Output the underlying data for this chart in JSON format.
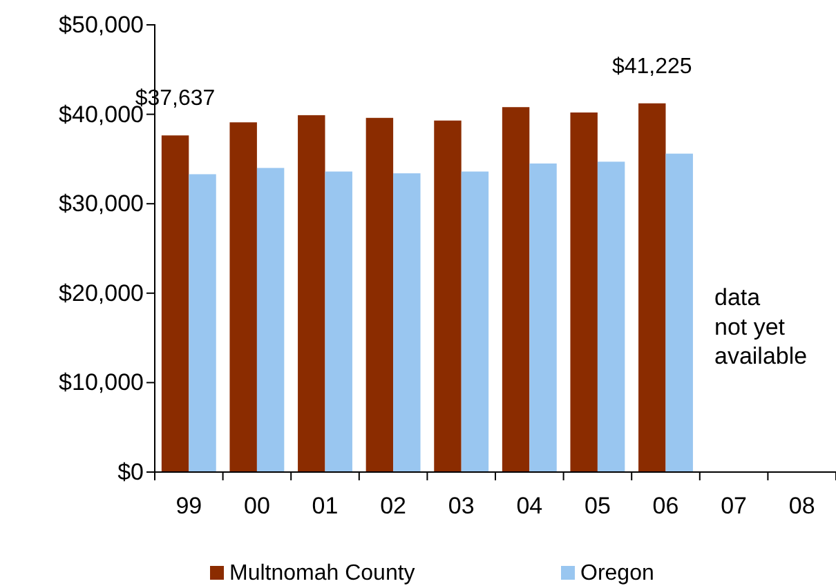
{
  "chart_data": {
    "type": "bar",
    "categories": [
      "99",
      "00",
      "01",
      "02",
      "03",
      "04",
      "05",
      "06",
      "07",
      "08"
    ],
    "series": [
      {
        "name": "Multnomah County",
        "color": "#8b2c00",
        "values": [
          37637,
          39100,
          39900,
          39600,
          39300,
          40800,
          40200,
          41225,
          null,
          null
        ],
        "value_labels": [
          "$37,637",
          null,
          null,
          null,
          null,
          null,
          null,
          "$41,225",
          null,
          null
        ]
      },
      {
        "name": "Oregon",
        "color": "#99c6f0",
        "values": [
          33300,
          34000,
          33600,
          33400,
          33600,
          34500,
          34700,
          35600,
          null,
          null
        ]
      }
    ],
    "ylim": [
      0,
      50000
    ],
    "yticks": [
      {
        "value": 0,
        "label": "$0"
      },
      {
        "value": 10000,
        "label": "$10,000"
      },
      {
        "value": 20000,
        "label": "$20,000"
      },
      {
        "value": 30000,
        "label": "$30,000"
      },
      {
        "value": 40000,
        "label": "$40,000"
      },
      {
        "value": 50000,
        "label": "$50,000"
      }
    ],
    "annotations": [
      "data\nnot yet\navailable"
    ],
    "legend": "bottom",
    "grid": false
  }
}
